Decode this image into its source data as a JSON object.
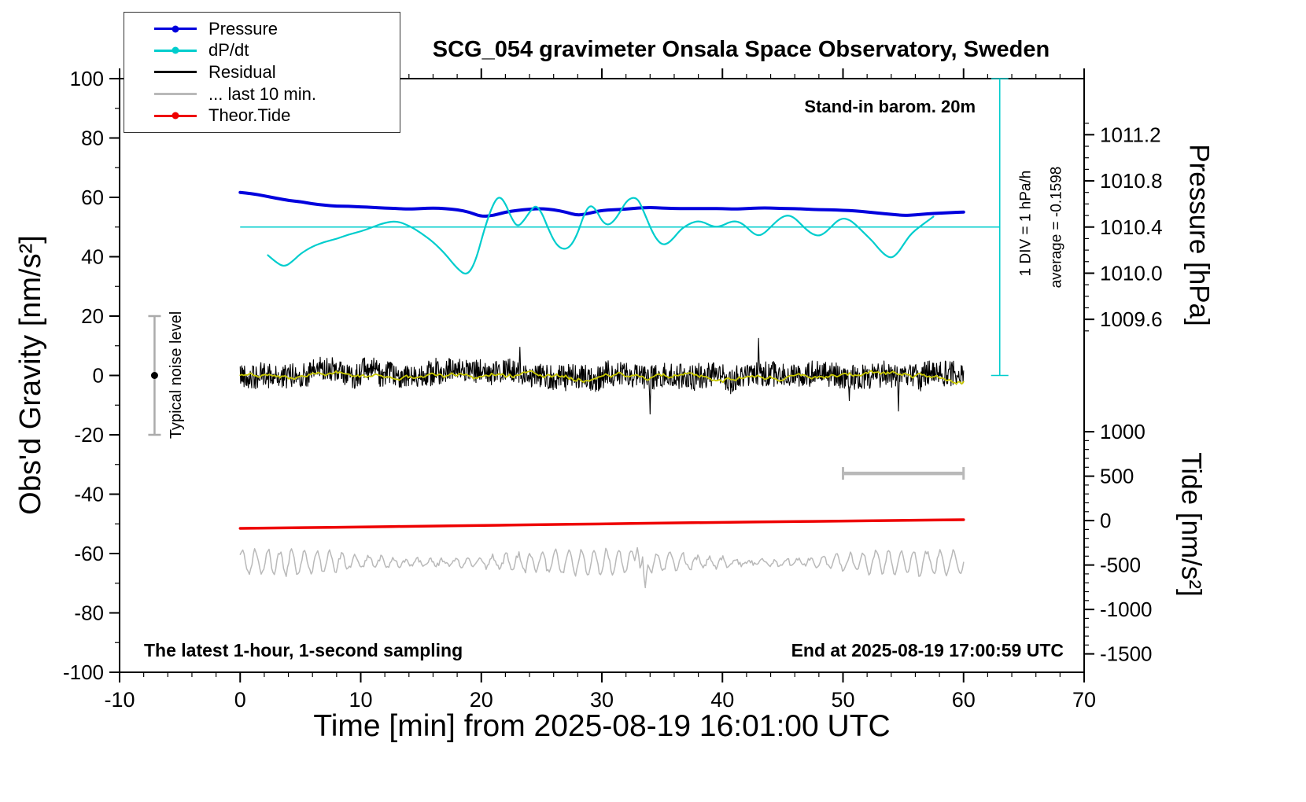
{
  "chart_data": {
    "type": "line",
    "title": "SCG_054 gravimeter Onsala Space Observatory, Sweden",
    "xlabel": "Time [min] from 2025-08-19 16:01:00 UTC",
    "ylabel_left": "Obs'd Gravity [nm/s²]",
    "ylabel_right_top": "Pressure [hPa]",
    "ylabel_right_bottom": "Tide [nm/s²]",
    "grid": false,
    "average_value": -0.1598,
    "annotations": {
      "barom": "Stand-in barom. 20m",
      "div_scale": "1 DIV = 1 hPa/h",
      "average": "average = -0.1598",
      "noise_level": "Typical noise level",
      "sampling": "The latest 1-hour, 1-second sampling",
      "end_time": "End at 2025-08-19 17:00:59 UTC"
    },
    "axes": {
      "x": {
        "min": -10,
        "max": 70,
        "major": 10,
        "minor": 2,
        "ticks": [
          -10,
          0,
          10,
          20,
          30,
          40,
          50,
          60,
          70
        ]
      },
      "gravity": {
        "min": -100,
        "max": 100,
        "major": 20,
        "minor": 10,
        "ticks": [
          100,
          80,
          60,
          40,
          20,
          0,
          -20,
          -40,
          -60,
          -80,
          -100
        ]
      },
      "pressure": {
        "ticks": [
          1011.2,
          1010.8,
          1010.4,
          1010.0,
          1009.6
        ],
        "minor": 0.1,
        "ref_value": 1010.4,
        "ref_gravity": 50,
        "gravity_per_hpa": 38.875
      },
      "tide": {
        "ticks": [
          1000,
          500,
          0,
          -500,
          -1000,
          -1500
        ],
        "minor": 100,
        "ref_value": 0,
        "ref_gravity": -48.9,
        "gravity_per_unit": 0.02994
      }
    },
    "legend": [
      {
        "label": "Pressure",
        "color": "#0000dd",
        "marker": true,
        "lw": 3
      },
      {
        "label": "dP/dt",
        "color": "#00cdcd",
        "marker": true,
        "lw": 3
      },
      {
        "label": "Residual",
        "color": "#000000",
        "marker": false,
        "lw": 3.5
      },
      {
        "label": "... last 10 min.",
        "color": "#b9b9b9",
        "marker": false,
        "lw": 3
      },
      {
        "label": "Theor.Tide",
        "color": "#ee0000",
        "marker": true,
        "lw": 3
      }
    ],
    "series": {
      "pressure": {
        "axis": "pressure",
        "color": "#0000dd",
        "width": 4,
        "smooth": true,
        "t0": 0,
        "dt": 1,
        "values": [
          1010.7,
          1010.69,
          1010.67,
          1010.65,
          1010.63,
          1010.62,
          1010.6,
          1010.59,
          1010.58,
          1010.58,
          1010.575,
          1010.57,
          1010.565,
          1010.56,
          1010.555,
          1010.56,
          1010.565,
          1010.56,
          1010.55,
          1010.53,
          1010.49,
          1010.5,
          1010.53,
          1010.545,
          1010.555,
          1010.56,
          1010.55,
          1010.53,
          1010.5,
          1010.52,
          1010.545,
          1010.55,
          1010.555,
          1010.565,
          1010.57,
          1010.565,
          1010.56,
          1010.56,
          1010.56,
          1010.56,
          1010.56,
          1010.555,
          1010.56,
          1010.565,
          1010.565,
          1010.56,
          1010.56,
          1010.555,
          1010.55,
          1010.55,
          1010.545,
          1010.54,
          1010.53,
          1010.52,
          1010.51,
          1010.5,
          1010.505,
          1010.515,
          1010.52,
          1010.525,
          1010.53
        ]
      },
      "dp_dt": {
        "axis": "gravity",
        "color": "#00cdcd",
        "width": 2.2,
        "smooth": true,
        "zero_line_gravity": 50,
        "units_note": "1 DIV = 1 hPa/h, zero at gravity-axis 50",
        "points": [
          [
            2.3,
            40.5
          ],
          [
            3,
            38
          ],
          [
            3.7,
            36.5
          ],
          [
            4.5,
            39
          ],
          [
            5,
            41
          ],
          [
            6,
            43.5
          ],
          [
            7,
            45
          ],
          [
            8,
            46
          ],
          [
            9,
            47.5
          ],
          [
            10,
            48.5
          ],
          [
            11,
            50
          ],
          [
            12,
            51.5
          ],
          [
            13,
            52
          ],
          [
            14,
            50.5
          ],
          [
            15,
            48
          ],
          [
            16,
            45
          ],
          [
            17,
            41
          ],
          [
            18,
            36
          ],
          [
            18.8,
            33.5
          ],
          [
            19.5,
            38
          ],
          [
            20.3,
            50
          ],
          [
            21,
            58
          ],
          [
            21.5,
            60.5
          ],
          [
            22,
            58
          ],
          [
            22.5,
            53
          ],
          [
            23,
            50
          ],
          [
            23.5,
            52
          ],
          [
            24,
            55
          ],
          [
            24.5,
            57.5
          ],
          [
            25,
            55
          ],
          [
            25.5,
            50
          ],
          [
            26,
            45.5
          ],
          [
            26.5,
            43
          ],
          [
            27,
            42.5
          ],
          [
            27.5,
            44
          ],
          [
            28,
            48
          ],
          [
            28.5,
            54
          ],
          [
            29,
            57.5
          ],
          [
            29.5,
            56
          ],
          [
            30,
            52
          ],
          [
            30.5,
            50.5
          ],
          [
            31,
            52
          ],
          [
            31.5,
            55
          ],
          [
            32,
            58.5
          ],
          [
            32.5,
            60
          ],
          [
            33,
            59.5
          ],
          [
            33.5,
            55
          ],
          [
            34,
            50
          ],
          [
            34.5,
            46
          ],
          [
            35,
            44
          ],
          [
            35.5,
            44.5
          ],
          [
            36,
            46.5
          ],
          [
            36.5,
            49
          ],
          [
            37,
            50.5
          ],
          [
            37.5,
            51.5
          ],
          [
            38,
            52
          ],
          [
            38.5,
            51.5
          ],
          [
            39,
            50.5
          ],
          [
            39.5,
            50
          ],
          [
            40,
            50.5
          ],
          [
            40.5,
            51.5
          ],
          [
            41,
            52
          ],
          [
            41.5,
            51.5
          ],
          [
            42,
            50
          ],
          [
            42.5,
            48
          ],
          [
            43,
            47
          ],
          [
            43.5,
            48
          ],
          [
            44,
            50
          ],
          [
            44.5,
            52
          ],
          [
            45,
            53.5
          ],
          [
            45.5,
            54
          ],
          [
            46,
            53
          ],
          [
            46.5,
            51
          ],
          [
            47,
            49
          ],
          [
            47.5,
            47.5
          ],
          [
            48,
            47
          ],
          [
            48.5,
            48
          ],
          [
            49,
            50
          ],
          [
            49.5,
            52
          ],
          [
            50,
            53
          ],
          [
            50.5,
            52.5
          ],
          [
            51,
            51
          ],
          [
            51.5,
            49
          ],
          [
            52,
            47
          ],
          [
            52.5,
            45
          ],
          [
            53,
            42.5
          ],
          [
            53.5,
            40.5
          ],
          [
            54,
            39.5
          ],
          [
            54.5,
            41
          ],
          [
            55,
            44
          ],
          [
            55.5,
            47
          ],
          [
            56,
            49
          ],
          [
            56.5,
            50.5
          ],
          [
            57,
            52
          ],
          [
            57.5,
            53.5
          ]
        ]
      },
      "theor_tide": {
        "axis": "tide",
        "color": "#ee0000",
        "width": 3.5,
        "smooth": true,
        "points": [
          [
            0,
            -88
          ],
          [
            5,
            -80
          ],
          [
            10,
            -72
          ],
          [
            15,
            -63
          ],
          [
            20,
            -55
          ],
          [
            25,
            -46
          ],
          [
            30,
            -37
          ],
          [
            35,
            -28
          ],
          [
            40,
            -20
          ],
          [
            45,
            -12
          ],
          [
            50,
            -5
          ],
          [
            55,
            2
          ],
          [
            60,
            10
          ]
        ]
      },
      "residual": {
        "axis": "gravity",
        "color": "#000000",
        "width": 1.1,
        "gen": "noise",
        "n": 1500,
        "t0": 0,
        "t1": 60,
        "mean": 0,
        "amplitude": 4.2,
        "wander": 0.35,
        "seed": 42,
        "spikes": [
          [
            23.2,
            9.5
          ],
          [
            34,
            -13
          ],
          [
            43,
            12.5
          ],
          [
            50.5,
            -8.5
          ],
          [
            54.6,
            -12
          ]
        ]
      },
      "residual_smooth": {
        "axis": "gravity",
        "color": "#c8c800",
        "width": 1.8,
        "gen": "wander",
        "n": 400,
        "t0": 0,
        "t1": 60,
        "mean": 0,
        "damp": 0.95,
        "wander": 1.2,
        "amplitude": 0.4,
        "seed": 11
      },
      "residual_last10": {
        "axis": "gravity",
        "color": "#b9b9b9",
        "width": 1.5,
        "gen": "osc",
        "n": 550,
        "t0": 0,
        "t1": 60,
        "mean": -63,
        "osc_period": 1.05,
        "osc_amp": 3.4,
        "amplitude": 0.8,
        "seed": 7,
        "spikes": [
          [
            32.9,
            5
          ],
          [
            33.6,
            -8.5
          ]
        ]
      }
    },
    "markers": {
      "dp_zero_line": {
        "t0": 0,
        "t1": 63,
        "g": 50,
        "color": "#00cdcd"
      },
      "dp_scale_bar": {
        "t": 63,
        "g0": 0,
        "g1": 100,
        "cap_half": 11,
        "color": "#00cdcd"
      },
      "noise_errorbar": {
        "t": -7.1,
        "g0": -20,
        "g1": 20,
        "dot_g": 0,
        "cap_half": 8,
        "color": "#ababab",
        "dot_color": "#000000"
      },
      "ten_min_bar": {
        "t0": 50,
        "t1": 60,
        "g": -33,
        "cap_half": 8,
        "color": "#b9b9b9"
      }
    }
  }
}
